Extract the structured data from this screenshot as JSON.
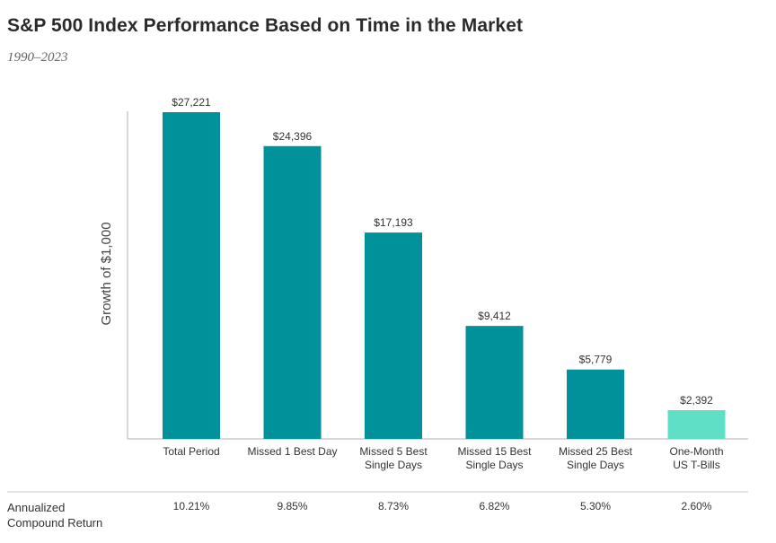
{
  "title": "S&P 500 Index Performance Based on Time in the Market",
  "subtitle": "1990–2023",
  "chart_data": {
    "type": "bar",
    "title": "S&P 500 Index Performance Based on Time in the Market",
    "subtitle": "1990–2023",
    "ylabel": "Growth of $1,000",
    "xlabel": "",
    "grid": false,
    "categories": [
      [
        "Total Period"
      ],
      [
        "Missed 1 Best Day"
      ],
      [
        "Missed 5 Best",
        "Single Days"
      ],
      [
        "Missed 15 Best",
        "Single Days"
      ],
      [
        "Missed 25 Best",
        "Single Days"
      ],
      [
        "One-Month",
        "US T-Bills"
      ]
    ],
    "values": [
      27221,
      24396,
      17193,
      9412,
      5779,
      2392
    ],
    "value_labels": [
      "$27,221",
      "$24,396",
      "$17,193",
      "$9,412",
      "$5,779",
      "$2,392"
    ],
    "colors": [
      "#00919a",
      "#00919a",
      "#00919a",
      "#00919a",
      "#00919a",
      "#5fe0c6"
    ],
    "ylim": [
      0,
      27221
    ]
  },
  "returns": {
    "label_line1": "Annualized",
    "label_line2": "Compound Return",
    "values": [
      "10.21%",
      "9.85%",
      "8.73%",
      "6.82%",
      "5.30%",
      "2.60%"
    ]
  }
}
